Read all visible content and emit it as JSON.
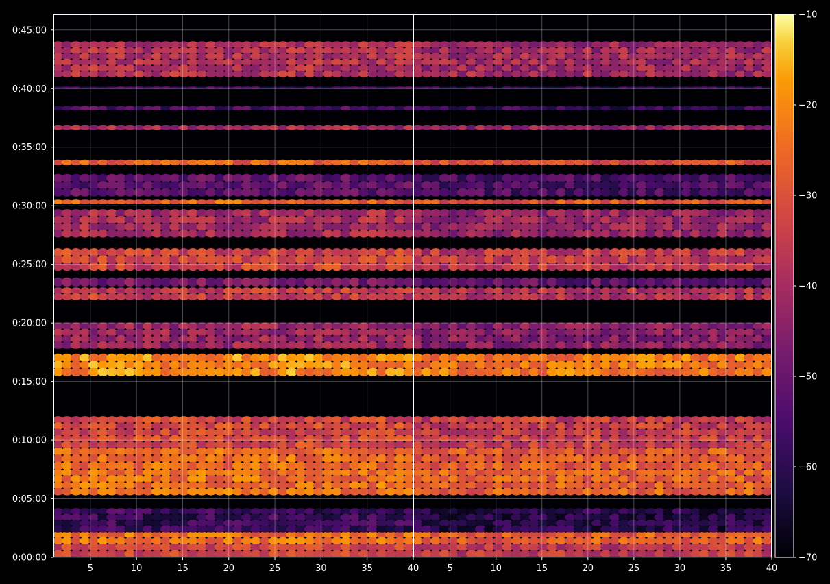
{
  "chart_data": {
    "type": "heatmap",
    "title": "",
    "colormap": "inferno",
    "background": "#000000",
    "grid": true,
    "panels": [
      {
        "name": "left",
        "xlim": [
          1,
          40
        ],
        "xticks": [
          5,
          10,
          15,
          20,
          25,
          30,
          35,
          40
        ]
      },
      {
        "name": "right",
        "xlim": [
          1,
          40
        ],
        "xticks": [
          5,
          10,
          15,
          20,
          25,
          30,
          35,
          40
        ]
      }
    ],
    "y_axis": {
      "range_seconds": [
        0,
        2780
      ],
      "ticks": [
        {
          "label": "0:00:00",
          "value": 0
        },
        {
          "label": "0:05:00",
          "value": 300
        },
        {
          "label": "0:10:00",
          "value": 600
        },
        {
          "label": "0:15:00",
          "value": 900
        },
        {
          "label": "0:20:00",
          "value": 1200
        },
        {
          "label": "0:25:00",
          "value": 1500
        },
        {
          "label": "0:30:00",
          "value": 1800
        },
        {
          "label": "0:35:00",
          "value": 2100
        },
        {
          "label": "0:40:00",
          "value": 2400
        },
        {
          "label": "0:45:00",
          "value": 2700
        }
      ]
    },
    "colorbar": {
      "range": [
        -70,
        -10
      ],
      "ticks": [
        "-10",
        "-20",
        "-30",
        "-40",
        "-50",
        "-60",
        "-70"
      ],
      "tick_values": [
        -10,
        -20,
        -30,
        -40,
        -50,
        -60,
        -70
      ]
    },
    "bands": [
      {
        "t": [
          0,
          70
        ],
        "level": -33,
        "panels": "both"
      },
      {
        "t": [
          70,
          130
        ],
        "level": -24,
        "panels": "both"
      },
      {
        "t": [
          130,
          250
        ],
        "level": -58,
        "panels": "both"
      },
      {
        "t": [
          320,
          450
        ],
        "level": -24,
        "panels": "both"
      },
      {
        "t": [
          450,
          560
        ],
        "level": -25,
        "panels": "both"
      },
      {
        "t": [
          560,
          720
        ],
        "level": -32,
        "panels": "both"
      },
      {
        "t": [
          930,
          1040
        ],
        "level": -20,
        "panels": "both"
      },
      {
        "t": [
          1070,
          1200
        ],
        "level": -42,
        "panels": "both"
      },
      {
        "t": [
          1320,
          1380
        ],
        "level": -35,
        "panels": "both"
      },
      {
        "t": [
          1390,
          1430
        ],
        "level": -48,
        "panels": "both"
      },
      {
        "t": [
          1470,
          1580
        ],
        "level": -33,
        "panels": "both"
      },
      {
        "t": [
          1640,
          1780
        ],
        "level": -40,
        "panels": "both"
      },
      {
        "t": [
          1810,
          1830
        ],
        "level": -26,
        "panels": "both"
      },
      {
        "t": [
          1850,
          1960
        ],
        "level": -52,
        "panels": "both"
      },
      {
        "t": [
          2010,
          2035
        ],
        "level": -27,
        "panels": "both"
      },
      {
        "t": [
          2190,
          2210
        ],
        "level": -40,
        "panels": "both"
      },
      {
        "t": [
          2290,
          2310
        ],
        "level": -55,
        "panels": "both"
      },
      {
        "t": [
          2400,
          2410
        ],
        "level": -57,
        "panels": "both"
      },
      {
        "t": [
          2460,
          2640
        ],
        "level": -38,
        "panels": "both"
      }
    ]
  }
}
